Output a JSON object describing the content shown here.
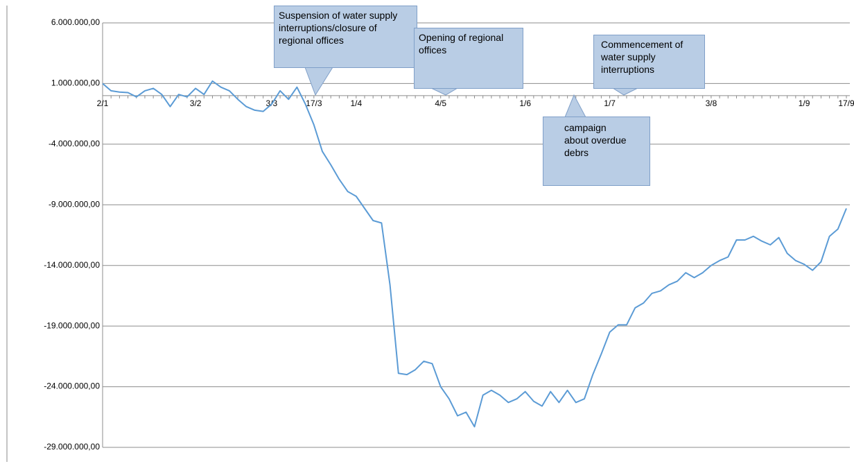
{
  "chart_data": {
    "type": "line",
    "categories": [
      "2/1",
      null,
      null,
      null,
      null,
      null,
      null,
      null,
      null,
      null,
      null,
      "3/2",
      null,
      null,
      null,
      null,
      null,
      null,
      null,
      null,
      "3/3",
      null,
      null,
      null,
      null,
      "17/3",
      null,
      null,
      null,
      null,
      "1/4",
      null,
      null,
      null,
      null,
      null,
      null,
      null,
      null,
      null,
      "4/5",
      null,
      null,
      null,
      null,
      null,
      null,
      null,
      null,
      null,
      "1/6",
      null,
      null,
      null,
      null,
      null,
      null,
      null,
      null,
      null,
      "1/7",
      null,
      null,
      null,
      null,
      null,
      null,
      null,
      null,
      null,
      null,
      null,
      "3/8",
      null,
      null,
      null,
      null,
      null,
      null,
      null,
      null,
      null,
      null,
      "1/9",
      null,
      null,
      null,
      null,
      "17/9"
    ],
    "series": [
      {
        "color": "#5b9bd5",
        "values": [
          1000000,
          400000,
          300000,
          250000,
          -100000,
          400000,
          600000,
          100000,
          -900000,
          100000,
          -100000,
          600000,
          100000,
          1200000,
          700000,
          400000,
          -300000,
          -900000,
          -1200000,
          -1300000,
          -700000,
          400000,
          -300000,
          700000,
          -700000,
          -2400000,
          -4600000,
          -5700000,
          -6900000,
          -7900000,
          -8300000,
          -9300000,
          -10300000,
          -10500000,
          -15600000,
          -22900000,
          -23000000,
          -22600000,
          -21900000,
          -22100000,
          -24000000,
          -25000000,
          -26400000,
          -26100000,
          -27300000,
          -24700000,
          -24300000,
          -24700000,
          -25300000,
          -25000000,
          -24400000,
          -25200000,
          -25600000,
          -24400000,
          -25300000,
          -24300000,
          -25300000,
          -25000000,
          -23000000,
          -21300000,
          -19500000,
          -18900000,
          -18900000,
          -17500000,
          -17100000,
          -16300000,
          -16100000,
          -15600000,
          -15300000,
          -14600000,
          -15000000,
          -14600000,
          -14000000,
          -13600000,
          -13300000,
          -11900000,
          -11900000,
          -11600000,
          -12000000,
          -12300000,
          -11700000,
          -13000000,
          -13600000,
          -13900000,
          -14400000,
          -13700000,
          -11600000,
          -11000000,
          -9300000
        ]
      }
    ],
    "ylim": [
      -29000000,
      6000000
    ],
    "yticks": [
      {
        "value": 6000000,
        "label": "6.000.000,00"
      },
      {
        "value": 1000000,
        "label": "1.000.000,00"
      },
      {
        "value": -4000000,
        "label": "-4.000.000,00"
      },
      {
        "value": -9000000,
        "label": "-9.000.000,00"
      },
      {
        "value": -14000000,
        "label": "-14.000.000,00"
      },
      {
        "value": -19000000,
        "label": "-19.000.000,00"
      },
      {
        "value": -24000000,
        "label": "-24.000.000,00"
      },
      {
        "value": -29000000,
        "label": "-29.000.000,00"
      }
    ],
    "grid": true,
    "annotations": [
      "Suspension of water supply interruptions/closure of regional offices",
      "Opening of regional offices",
      "Commencement of water supply interruptions",
      "campaign about overdue debrs"
    ]
  }
}
